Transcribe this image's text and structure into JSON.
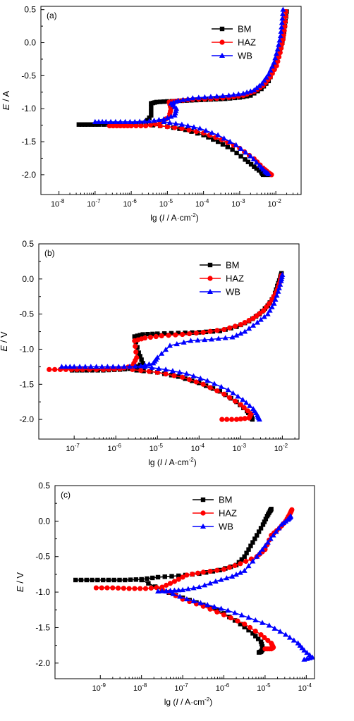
{
  "figure": {
    "background": "#ffffff",
    "colors": {
      "BM": "#000000",
      "HAZ": "#ff0000",
      "WB": "#0000ff"
    }
  },
  "chart_data": [
    {
      "type": "line",
      "panel_label": "(a)",
      "xlabel_prefix": "lg (",
      "xlabel_italic": "I",
      "xlabel_unit": " / A·cm",
      "xlabel_sup": "-2",
      "xlabel_suffix": ")",
      "ylabel_italic": "E",
      "ylabel_unit": " / A",
      "xscale": "log",
      "xlim_exp": [
        -8.5,
        -1.3
      ],
      "ylim": [
        -2.3,
        0.55
      ],
      "x_tick_exponents": [
        -8,
        -7,
        -6,
        -5,
        -4,
        -3,
        -2
      ],
      "y_ticks": [
        "0.5",
        "0.0",
        "-0.5",
        "-1.0",
        "-1.5",
        "-2.0"
      ],
      "y_tick_values": [
        0.5,
        0.0,
        -0.5,
        -1.0,
        -1.5,
        -2.0
      ],
      "legend_position": "top-right",
      "series": [
        {
          "name": "BM",
          "marker": "square",
          "color": "#000000",
          "log_i": [
            -7.45,
            -7.2,
            -6.9,
            -6.5,
            -6.0,
            -5.6,
            -5.45,
            -5.45,
            -5.3,
            -5.0,
            -4.6,
            -4.2,
            -3.8,
            -3.4,
            -3.0,
            -2.7,
            -2.4,
            -2.2,
            -2.05,
            -1.92,
            -1.82,
            -1.75,
            -1.7
          ],
          "E": [
            -1.24,
            -1.24,
            -1.24,
            -1.24,
            -1.23,
            -1.21,
            -1.1,
            -0.92,
            -0.9,
            -0.89,
            -0.88,
            -0.87,
            -0.86,
            -0.85,
            -0.83,
            -0.8,
            -0.7,
            -0.58,
            -0.4,
            -0.2,
            0.0,
            0.25,
            0.47
          ],
          "cathodic_log_i": [
            -5.6,
            -5.0,
            -4.5,
            -4.0,
            -3.6,
            -3.2,
            -2.85,
            -2.6,
            -2.4,
            -2.35,
            -2.15
          ],
          "cathodic_E": [
            -1.24,
            -1.27,
            -1.32,
            -1.4,
            -1.5,
            -1.62,
            -1.77,
            -1.88,
            -1.96,
            -2.0,
            -2.0
          ]
        },
        {
          "name": "HAZ",
          "marker": "circle",
          "color": "#ff0000",
          "log_i": [
            -6.6,
            -6.3,
            -6.0,
            -5.6,
            -5.2,
            -4.95,
            -4.9,
            -4.95,
            -4.7,
            -4.3,
            -3.8,
            -3.3,
            -2.9,
            -2.6,
            -2.35,
            -2.15,
            -1.98,
            -1.88,
            -1.8,
            -1.75,
            -1.72
          ],
          "E": [
            -1.26,
            -1.26,
            -1.26,
            -1.26,
            -1.22,
            -1.12,
            -1.0,
            -0.9,
            -0.88,
            -0.86,
            -0.85,
            -0.83,
            -0.8,
            -0.74,
            -0.65,
            -0.52,
            -0.35,
            -0.15,
            0.05,
            0.25,
            0.47
          ],
          "cathodic_log_i": [
            -5.2,
            -4.6,
            -4.0,
            -3.5,
            -3.0,
            -2.6,
            -2.35,
            -2.2,
            -2.12
          ],
          "cathodic_E": [
            -1.26,
            -1.3,
            -1.37,
            -1.47,
            -1.6,
            -1.76,
            -1.9,
            -1.97,
            -2.0
          ]
        },
        {
          "name": "WB",
          "marker": "triangle",
          "color": "#0000ff",
          "log_i": [
            -7.0,
            -6.7,
            -6.3,
            -5.9,
            -5.5,
            -5.1,
            -4.8,
            -4.75,
            -4.9,
            -4.7,
            -4.3,
            -3.8,
            -3.3,
            -2.9,
            -2.6,
            -2.38,
            -2.2,
            -2.05,
            -1.95,
            -1.87,
            -1.83,
            -1.8
          ],
          "E": [
            -1.2,
            -1.2,
            -1.2,
            -1.2,
            -1.19,
            -1.16,
            -1.1,
            -1.0,
            -0.92,
            -0.88,
            -0.84,
            -0.82,
            -0.8,
            -0.77,
            -0.72,
            -0.62,
            -0.48,
            -0.3,
            -0.1,
            0.1,
            0.3,
            0.5
          ],
          "cathodic_log_i": [
            -5.1,
            -4.6,
            -4.1,
            -3.6,
            -3.1,
            -2.7,
            -2.45,
            -2.3,
            -2.2
          ],
          "cathodic_E": [
            -1.2,
            -1.24,
            -1.3,
            -1.4,
            -1.55,
            -1.72,
            -1.86,
            -1.95,
            -1.99
          ]
        }
      ]
    },
    {
      "type": "line",
      "panel_label": "(b)",
      "xlabel_prefix": "lg (",
      "xlabel_italic": "I",
      "xlabel_unit": " / A·cm",
      "xlabel_sup": "-2",
      "xlabel_suffix": ")",
      "ylabel_italic": "E",
      "ylabel_unit": " / V",
      "xscale": "log",
      "xlim_exp": [
        -7.85,
        -1.6
      ],
      "ylim": [
        -2.28,
        0.5
      ],
      "x_tick_exponents": [
        -7,
        -6,
        -5,
        -4,
        -3,
        -2
      ],
      "y_ticks": [
        "0.5",
        "0.0",
        "-0.5",
        "-1.0",
        "-1.5",
        "-2.0"
      ],
      "y_tick_values": [
        0.5,
        0.0,
        -0.5,
        -1.0,
        -1.5,
        -2.0
      ],
      "legend_position": "top-right",
      "series": [
        {
          "name": "BM",
          "marker": "square",
          "color": "#000000",
          "log_i": [
            -7.05,
            -6.7,
            -6.3,
            -5.9,
            -5.55,
            -5.35,
            -5.45,
            -5.55,
            -5.35,
            -5.0,
            -4.5,
            -4.0,
            -3.5,
            -3.1,
            -2.8,
            -2.55,
            -2.35,
            -2.2,
            -2.12,
            -2.05,
            -2.02
          ],
          "E": [
            -1.3,
            -1.3,
            -1.3,
            -1.29,
            -1.27,
            -1.2,
            -1.05,
            -0.82,
            -0.79,
            -0.78,
            -0.77,
            -0.76,
            -0.74,
            -0.68,
            -0.6,
            -0.5,
            -0.38,
            -0.25,
            -0.1,
            0.02,
            0.08
          ],
          "cathodic_log_i": [
            -5.5,
            -5.0,
            -4.5,
            -4.0,
            -3.5,
            -3.1,
            -2.85,
            -2.75,
            -2.72
          ],
          "cathodic_E": [
            -1.3,
            -1.33,
            -1.39,
            -1.48,
            -1.6,
            -1.75,
            -1.88,
            -1.96,
            -2.0
          ]
        },
        {
          "name": "HAZ",
          "marker": "circle",
          "color": "#ff0000",
          "log_i": [
            -7.6,
            -7.2,
            -6.8,
            -6.3,
            -5.9,
            -5.6,
            -5.5,
            -5.55,
            -5.3,
            -4.9,
            -4.4,
            -3.9,
            -3.4,
            -3.0,
            -2.7,
            -2.45,
            -2.25,
            -2.12,
            -2.05,
            -2.02
          ],
          "E": [
            -1.29,
            -1.29,
            -1.29,
            -1.29,
            -1.28,
            -1.24,
            -1.12,
            -0.88,
            -0.84,
            -0.81,
            -0.79,
            -0.76,
            -0.72,
            -0.65,
            -0.56,
            -0.45,
            -0.3,
            -0.15,
            -0.02,
            0.05
          ],
          "cathodic_log_i": [
            -5.6,
            -5.0,
            -4.4,
            -3.9,
            -3.4,
            -3.0,
            -2.75,
            -2.8,
            -3.1,
            -3.45
          ],
          "cathodic_E": [
            -1.29,
            -1.33,
            -1.4,
            -1.5,
            -1.64,
            -1.79,
            -1.92,
            -1.98,
            -2.0,
            -2.0
          ]
        },
        {
          "name": "WB",
          "marker": "triangle",
          "color": "#0000ff",
          "log_i": [
            -7.3,
            -7.0,
            -6.6,
            -6.2,
            -5.8,
            -5.4,
            -5.1,
            -5.0,
            -4.7,
            -4.2,
            -3.7,
            -3.2,
            -2.9,
            -2.6,
            -2.35,
            -2.2,
            -2.1,
            -2.03,
            -2.0
          ],
          "E": [
            -1.25,
            -1.25,
            -1.25,
            -1.25,
            -1.25,
            -1.24,
            -1.2,
            -1.12,
            -0.95,
            -0.88,
            -0.86,
            -0.83,
            -0.75,
            -0.62,
            -0.5,
            -0.35,
            -0.18,
            -0.03,
            0.06
          ],
          "cathodic_log_i": [
            -5.3,
            -4.8,
            -4.3,
            -3.8,
            -3.3,
            -2.95,
            -2.7,
            -2.6,
            -2.55
          ],
          "cathodic_E": [
            -1.25,
            -1.29,
            -1.35,
            -1.45,
            -1.58,
            -1.72,
            -1.85,
            -1.94,
            -2.0
          ]
        }
      ]
    },
    {
      "type": "line",
      "panel_label": "(c)",
      "xlabel_prefix": "lg (",
      "xlabel_italic": "I",
      "xlabel_unit": " / A·cm",
      "xlabel_sup": "-2",
      "xlabel_suffix": ")",
      "ylabel_italic": "E",
      "ylabel_unit": " / V",
      "xscale": "log",
      "xlim_exp": [
        -10.1,
        -3.8
      ],
      "ylim": [
        -2.22,
        0.5
      ],
      "x_tick_exponents": [
        -9,
        -8,
        -7,
        -6,
        -5,
        -4
      ],
      "y_ticks": [
        "0.5",
        "0.0",
        "-0.5",
        "-1.0",
        "-1.5",
        "-2.0"
      ],
      "y_tick_values": [
        0.5,
        0.0,
        -0.5,
        -1.0,
        -1.5,
        -2.0
      ],
      "legend_position": "top-right",
      "series": [
        {
          "name": "BM",
          "marker": "square",
          "color": "#000000",
          "log_i": [
            -9.6,
            -9.2,
            -8.8,
            -8.4,
            -8.0,
            -7.6,
            -7.1,
            -6.6,
            -6.1,
            -5.7,
            -5.5,
            -5.35,
            -5.2,
            -5.05,
            -4.95,
            -4.88,
            -4.85
          ],
          "E": [
            -0.83,
            -0.83,
            -0.83,
            -0.83,
            -0.82,
            -0.79,
            -0.77,
            -0.74,
            -0.69,
            -0.62,
            -0.5,
            -0.35,
            -0.2,
            -0.05,
            0.07,
            0.14,
            0.17
          ],
          "cathodic_log_i": [
            -8.0,
            -7.5,
            -7.0,
            -6.5,
            -6.0,
            -5.6,
            -5.3,
            -5.1,
            -5.05,
            -5.1,
            -5.15
          ],
          "cathodic_E": [
            -0.83,
            -0.97,
            -1.08,
            -1.18,
            -1.3,
            -1.45,
            -1.58,
            -1.7,
            -1.8,
            -1.84,
            -1.85
          ]
        },
        {
          "name": "HAZ",
          "marker": "circle",
          "color": "#ff0000",
          "log_i": [
            -9.1,
            -8.7,
            -8.3,
            -7.9,
            -7.5,
            -7.2,
            -6.9,
            -6.5,
            -6.0,
            -5.6,
            -5.2,
            -5.0,
            -4.85,
            -4.65,
            -4.5,
            -4.4,
            -4.35,
            -4.38
          ],
          "E": [
            -0.94,
            -0.94,
            -0.95,
            -0.95,
            -0.93,
            -0.85,
            -0.76,
            -0.72,
            -0.68,
            -0.6,
            -0.5,
            -0.4,
            -0.2,
            -0.1,
            0.0,
            0.1,
            0.16,
            0.12
          ],
          "cathodic_log_i": [
            -7.5,
            -7.0,
            -6.5,
            -6.0,
            -5.5,
            -5.1,
            -4.85,
            -4.8,
            -4.85,
            -5.0
          ],
          "cathodic_E": [
            -0.95,
            -1.1,
            -1.2,
            -1.32,
            -1.45,
            -1.6,
            -1.72,
            -1.78,
            -1.8,
            -1.8
          ]
        },
        {
          "name": "WB",
          "marker": "triangle",
          "color": "#0000ff",
          "log_i": [
            -7.6,
            -7.3,
            -7.0,
            -6.6,
            -6.2,
            -5.8,
            -5.5,
            -5.2,
            -5.0,
            -4.8,
            -4.6,
            -4.45,
            -4.4,
            -4.38
          ],
          "E": [
            -0.99,
            -0.98,
            -0.97,
            -0.93,
            -0.85,
            -0.78,
            -0.7,
            -0.5,
            -0.35,
            -0.2,
            -0.05,
            0.02,
            0.05,
            0.07
          ],
          "cathodic_log_i": [
            -7.4,
            -6.9,
            -6.4,
            -5.9,
            -5.4,
            -4.9,
            -4.5,
            -4.2,
            -4.05,
            -3.85,
            -4.05
          ],
          "cathodic_E": [
            -0.99,
            -1.1,
            -1.18,
            -1.26,
            -1.36,
            -1.47,
            -1.6,
            -1.72,
            -1.82,
            -1.92,
            -1.95
          ]
        }
      ]
    }
  ]
}
